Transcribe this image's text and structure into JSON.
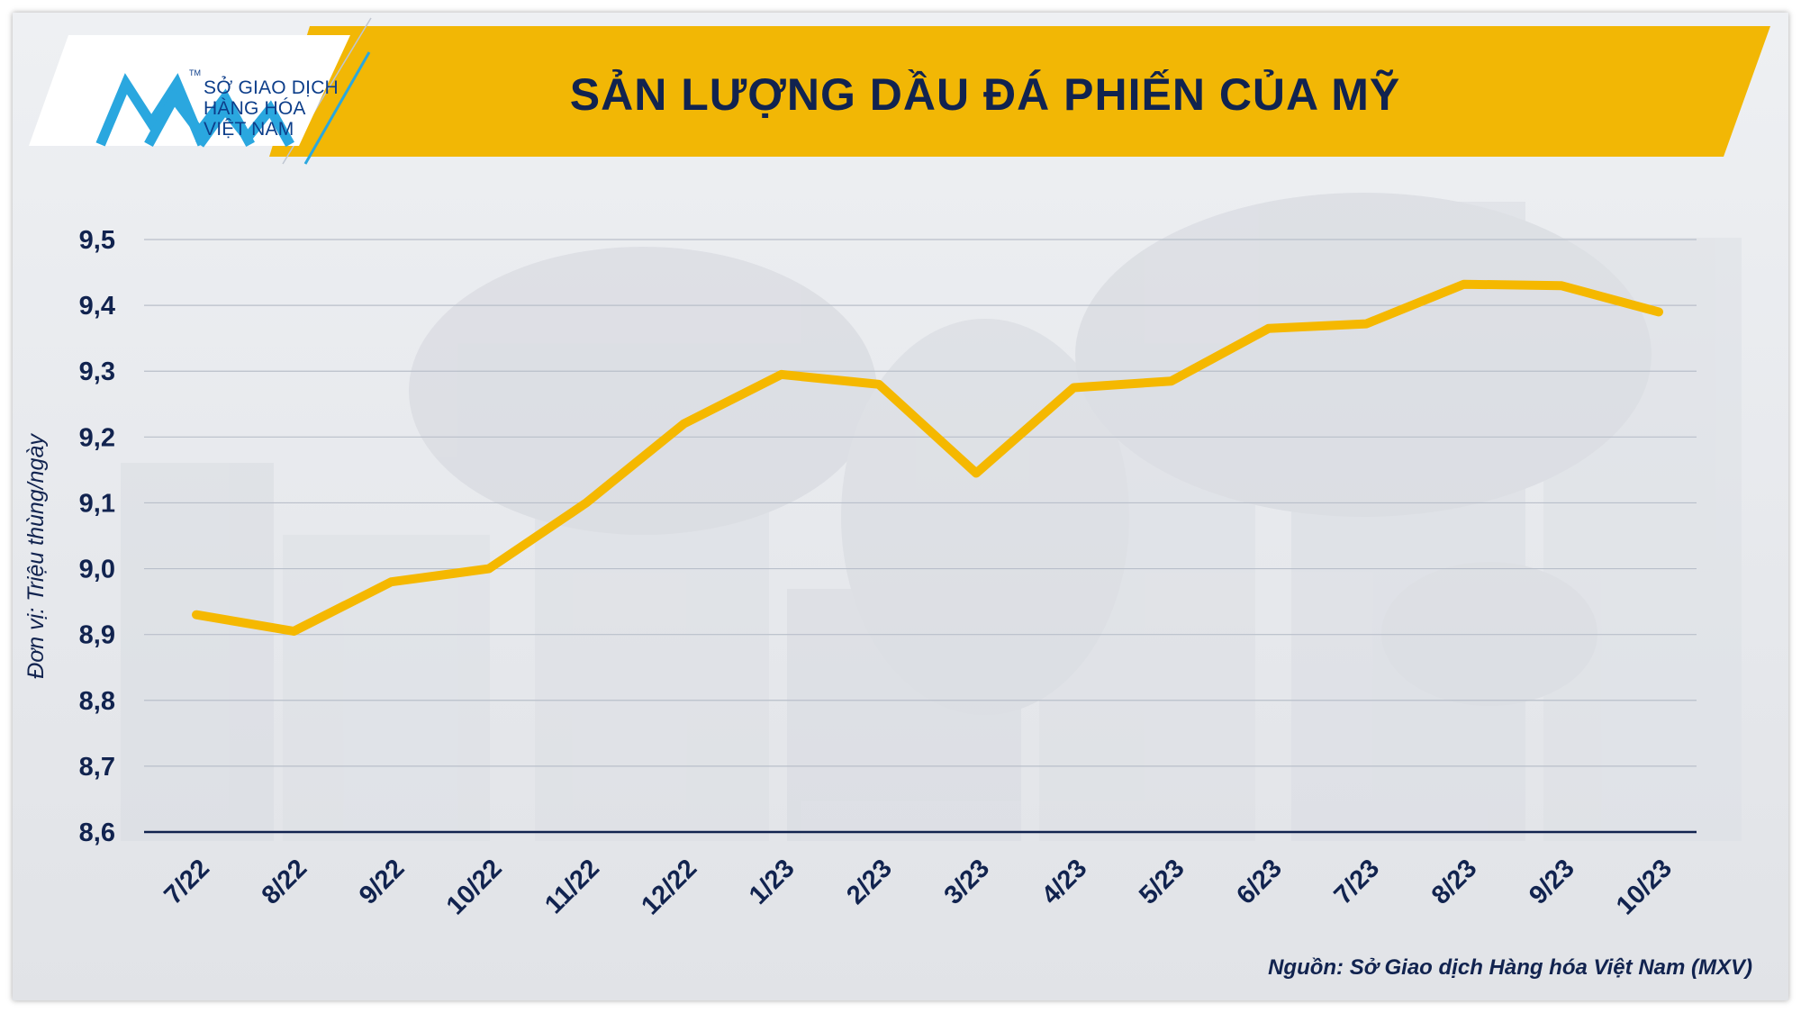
{
  "header": {
    "title": "SẢN LƯỢNG DẦU ĐÁ PHIẾN CỦA MỸ",
    "logo_lines": [
      "SỞ GIAO DỊCH",
      "HÀNG HÓA",
      "VIỆT NAM"
    ],
    "logo_tm": "TM"
  },
  "source": "Nguồn: Sở Giao dịch Hàng hóa Việt Nam (MXV)",
  "colors": {
    "banner": "#f2b705",
    "line": "#f5b800",
    "text": "#11234f",
    "logo": "#2aa7df"
  },
  "chart_data": {
    "type": "line",
    "ylabel": "Đơn vị: Triệu thùng/ngày",
    "ylim": [
      8.6,
      9.5
    ],
    "yticks": [
      "8,6",
      "8,7",
      "8,8",
      "8,9",
      "9,0",
      "9,1",
      "9,2",
      "9,3",
      "9,4",
      "9,5"
    ],
    "categories": [
      "7/22",
      "8/22",
      "9/22",
      "10/22",
      "11/22",
      "12/22",
      "1/23",
      "2/23",
      "3/23",
      "4/23",
      "5/23",
      "6/23",
      "7/23",
      "8/23",
      "9/23",
      "10/23"
    ],
    "values": [
      8.93,
      8.905,
      8.98,
      9.0,
      9.1,
      9.22,
      9.295,
      9.28,
      9.145,
      9.275,
      9.285,
      9.365,
      9.372,
      9.432,
      9.43,
      9.39
    ],
    "grid": true
  }
}
